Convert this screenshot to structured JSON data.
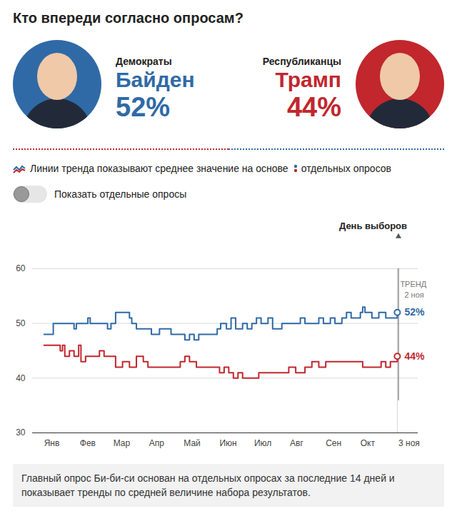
{
  "chart_data": {
    "type": "line",
    "title": "Кто впереди согласно опросам?",
    "note": "Линии тренда показывают среднее значение на основе",
    "note_points": "отдельных опросов",
    "toggle": "Показать отдельные опросы",
    "caption": "Главный опрос Би-би-си основан на отдельных опросах за последние 14 дней и показывает тренды по средней величине набора результатов.",
    "election_day": {
      "x": 307,
      "label": "День выборов"
    },
    "trend_label": "ТРЕНД",
    "trend_date": "2 ноя",
    "line_style": "step",
    "grid": true,
    "xlim": [
      -10,
      324
    ],
    "xticks": [
      {
        "value": 0,
        "label": "Янв"
      },
      {
        "value": 31,
        "label": "Фев"
      },
      {
        "value": 60,
        "label": "Мар"
      },
      {
        "value": 91,
        "label": "Апр"
      },
      {
        "value": 121,
        "label": "Май"
      },
      {
        "value": 152,
        "label": "Июн"
      },
      {
        "value": 182,
        "label": "Июл"
      },
      {
        "value": 213,
        "label": "Авг"
      },
      {
        "value": 244,
        "label": "Сен"
      },
      {
        "value": 274,
        "label": "Окт"
      },
      {
        "value": 307,
        "label": "3 ноя"
      }
    ],
    "ylim": [
      30,
      60
    ],
    "yticks": [
      30,
      40,
      50,
      60
    ],
    "series": [
      {
        "name": "Байден",
        "party": "Демократы",
        "color": "#2f6aa6",
        "marker": "circle",
        "end_label": "52%",
        "x": [
          0,
          8,
          20,
          26,
          28,
          36,
          38,
          40,
          50,
          55,
          58,
          62,
          72,
          74,
          76,
          80,
          90,
          93,
          100,
          110,
          118,
          122,
          126,
          130,
          134,
          140,
          150,
          153,
          158,
          162,
          166,
          172,
          176,
          180,
          184,
          188,
          194,
          198,
          206,
          214,
          222,
          226,
          232,
          238,
          242,
          248,
          252,
          258,
          262,
          266,
          274,
          276,
          278,
          284,
          290,
          296,
          300,
          306
        ],
        "values": [
          48,
          50,
          50,
          49,
          50,
          50,
          51,
          50,
          50,
          49,
          50,
          52,
          52,
          51,
          50,
          49,
          49,
          48,
          49,
          48,
          48,
          47,
          48,
          47,
          48,
          48,
          49,
          50,
          49,
          51,
          49,
          50,
          49,
          50,
          51,
          50,
          51,
          49,
          50,
          50,
          51,
          50,
          50,
          51,
          50,
          51,
          50,
          51,
          52,
          51,
          52,
          53,
          52,
          51,
          52,
          51,
          51,
          52
        ]
      },
      {
        "name": "Трамп",
        "party": "Республиканцы",
        "color": "#c1272d",
        "marker": "circle",
        "end_label": "44%",
        "x": [
          0,
          12,
          14,
          16,
          18,
          22,
          26,
          30,
          32,
          36,
          44,
          48,
          52,
          58,
          62,
          68,
          74,
          80,
          86,
          90,
          100,
          110,
          118,
          122,
          126,
          132,
          140,
          148,
          152,
          156,
          160,
          164,
          168,
          172,
          178,
          186,
          196,
          206,
          212,
          218,
          226,
          232,
          238,
          244,
          254,
          264,
          272,
          276,
          284,
          292,
          296,
          300,
          304,
          306
        ],
        "values": [
          46,
          46,
          45,
          46,
          44,
          45,
          44,
          46,
          43,
          44,
          44,
          45,
          44,
          44,
          42,
          43,
          42,
          44,
          43,
          42,
          42,
          42,
          43,
          44,
          43,
          42,
          42,
          42,
          41,
          42,
          41,
          40,
          41,
          40,
          40,
          41,
          41,
          41,
          42,
          41,
          42,
          43,
          42,
          43,
          43,
          43,
          43,
          42,
          42,
          43,
          42,
          43,
          43,
          44
        ]
      }
    ]
  }
}
